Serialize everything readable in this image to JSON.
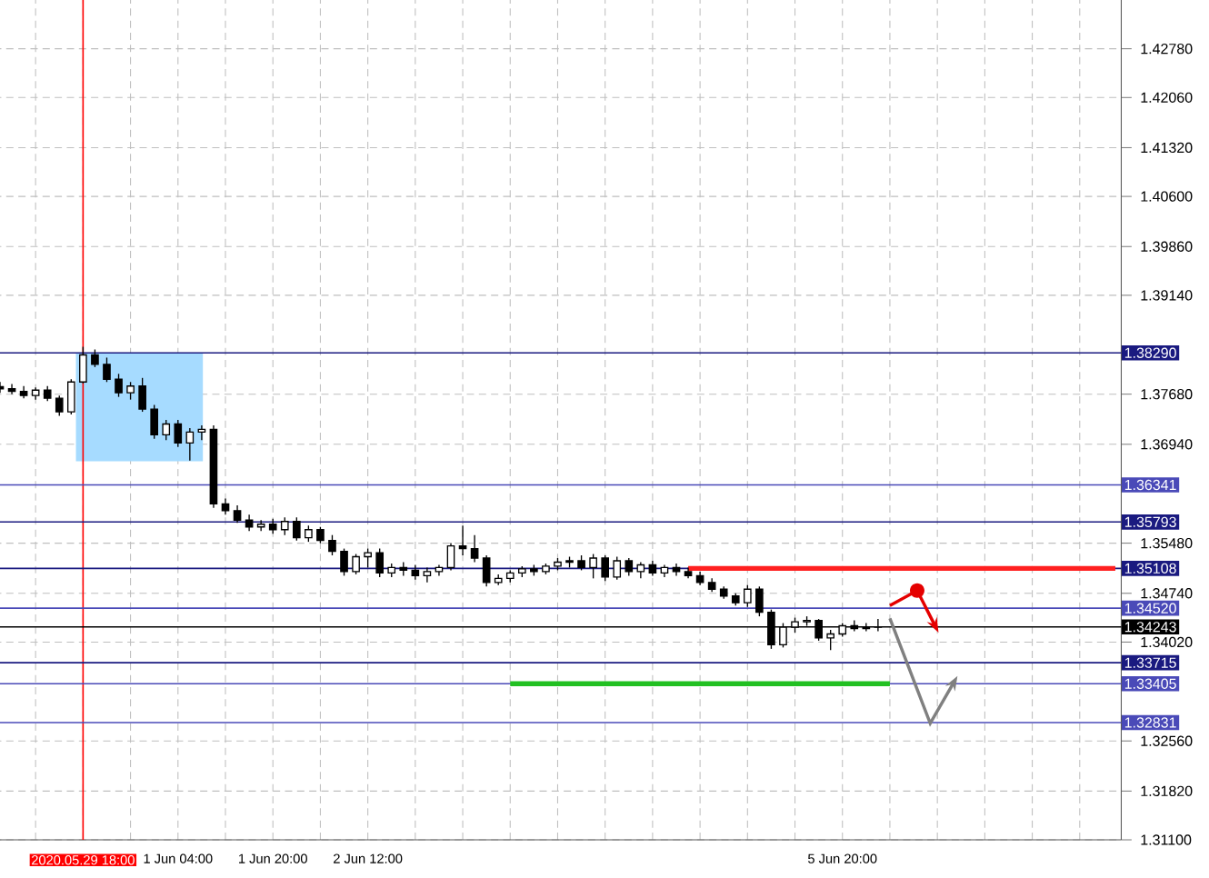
{
  "chart_data": {
    "type": "candlestick",
    "color": "#000000",
    "categories": [
      null,
      null,
      null,
      null,
      null,
      null,
      null,
      "2020.05.29 18:00",
      null,
      null,
      null,
      null,
      null,
      null,
      null,
      "1 Jun 04:00",
      null,
      null,
      null,
      null,
      null,
      null,
      null,
      "1 Jun 20:00",
      null,
      null,
      null,
      null,
      null,
      null,
      null,
      "2 Jun 12:00",
      null,
      null,
      null,
      null,
      null,
      null,
      null,
      null,
      null,
      null,
      null,
      null,
      null,
      null,
      null,
      null,
      null,
      null,
      null,
      null,
      null,
      null,
      null,
      null,
      null,
      null,
      null,
      null,
      null,
      null,
      null,
      null,
      null,
      null,
      null,
      null,
      null,
      null,
      null,
      "5 Jun 20:00",
      null,
      null,
      null,
      null,
      null,
      null,
      null,
      null,
      null,
      null,
      null,
      null,
      null,
      null,
      null,
      null,
      null,
      null,
      null,
      null,
      null,
      null,
      null
    ],
    "ohlc": [
      [
        1.3779,
        1.3786,
        1.377,
        1.3776
      ],
      [
        1.3776,
        1.3783,
        1.3768,
        1.3772
      ],
      [
        1.3772,
        1.378,
        1.3762,
        1.3766
      ],
      [
        1.3766,
        1.3778,
        1.376,
        1.3774
      ],
      [
        1.3774,
        1.378,
        1.3758,
        1.3762
      ],
      [
        1.3762,
        1.3766,
        1.3736,
        1.3742
      ],
      [
        1.3742,
        1.379,
        1.3738,
        1.3786
      ],
      [
        1.3786,
        1.3838,
        1.3784,
        1.3826
      ],
      [
        1.3826,
        1.3834,
        1.3808,
        1.3812
      ],
      [
        1.3812,
        1.3822,
        1.3786,
        1.379
      ],
      [
        1.379,
        1.3798,
        1.3764,
        1.377
      ],
      [
        1.377,
        1.3786,
        1.376,
        1.378
      ],
      [
        1.378,
        1.3792,
        1.3742,
        1.3746
      ],
      [
        1.3746,
        1.3752,
        1.3702,
        1.3708
      ],
      [
        1.3708,
        1.373,
        1.37,
        1.3724
      ],
      [
        1.3724,
        1.373,
        1.369,
        1.3696
      ],
      [
        1.3696,
        1.3718,
        1.367,
        1.3712
      ],
      [
        1.3712,
        1.3722,
        1.37,
        1.3716
      ],
      [
        1.3716,
        1.3722,
        1.36,
        1.3606
      ],
      [
        1.3606,
        1.3614,
        1.359,
        1.3596
      ],
      [
        1.3596,
        1.3604,
        1.3578,
        1.3582
      ],
      [
        1.3582,
        1.359,
        1.3566,
        1.3572
      ],
      [
        1.3572,
        1.3582,
        1.3566,
        1.3576
      ],
      [
        1.3576,
        1.3584,
        1.3562,
        1.3568
      ],
      [
        1.3568,
        1.3586,
        1.356,
        1.358
      ],
      [
        1.358,
        1.3586,
        1.3552,
        1.3556
      ],
      [
        1.3556,
        1.3574,
        1.355,
        1.3568
      ],
      [
        1.3568,
        1.3572,
        1.3548,
        1.3552
      ],
      [
        1.3552,
        1.356,
        1.353,
        1.3536
      ],
      [
        1.3536,
        1.354,
        1.35,
        1.3506
      ],
      [
        1.3506,
        1.3532,
        1.3502,
        1.3528
      ],
      [
        1.3528,
        1.354,
        1.3512,
        1.3534
      ],
      [
        1.3534,
        1.354,
        1.3498,
        1.3504
      ],
      [
        1.3504,
        1.3518,
        1.3498,
        1.3512
      ],
      [
        1.3512,
        1.352,
        1.35,
        1.3508
      ],
      [
        1.3508,
        1.3516,
        1.3494,
        1.35
      ],
      [
        1.35,
        1.3512,
        1.349,
        1.3506
      ],
      [
        1.3506,
        1.3516,
        1.35,
        1.3512
      ],
      [
        1.3512,
        1.3548,
        1.3508,
        1.3544
      ],
      [
        1.3544,
        1.3574,
        1.353,
        1.354
      ],
      [
        1.354,
        1.356,
        1.352,
        1.3526
      ],
      [
        1.3526,
        1.353,
        1.3484,
        1.349
      ],
      [
        1.349,
        1.3502,
        1.3486,
        1.3496
      ],
      [
        1.3496,
        1.3508,
        1.349,
        1.3504
      ],
      [
        1.3504,
        1.3514,
        1.3498,
        1.351
      ],
      [
        1.351,
        1.3516,
        1.35,
        1.3506
      ],
      [
        1.3506,
        1.3518,
        1.3502,
        1.3514
      ],
      [
        1.3514,
        1.3526,
        1.3508,
        1.352
      ],
      [
        1.352,
        1.3528,
        1.3512,
        1.3522
      ],
      [
        1.3522,
        1.353,
        1.3508,
        1.3512
      ],
      [
        1.3512,
        1.3532,
        1.3496,
        1.3526
      ],
      [
        1.3526,
        1.353,
        1.3492,
        1.3498
      ],
      [
        1.3498,
        1.3528,
        1.3494,
        1.3522
      ],
      [
        1.3522,
        1.3526,
        1.35,
        1.3506
      ],
      [
        1.3506,
        1.352,
        1.3496,
        1.3516
      ],
      [
        1.3516,
        1.3522,
        1.35,
        1.3504
      ],
      [
        1.3504,
        1.3516,
        1.3498,
        1.3512
      ],
      [
        1.3512,
        1.3518,
        1.35,
        1.3506
      ],
      [
        1.3506,
        1.3512,
        1.3496,
        1.35
      ],
      [
        1.35,
        1.3506,
        1.3486,
        1.349
      ],
      [
        1.349,
        1.3496,
        1.3476,
        1.348
      ],
      [
        1.348,
        1.3484,
        1.3466,
        1.347
      ],
      [
        1.347,
        1.3474,
        1.3456,
        1.346
      ],
      [
        1.346,
        1.3486,
        1.3454,
        1.348
      ],
      [
        1.348,
        1.3484,
        1.344,
        1.3446
      ],
      [
        1.3446,
        1.345,
        1.3392,
        1.3398
      ],
      [
        1.3398,
        1.343,
        1.3394,
        1.3424
      ],
      [
        1.3424,
        1.3438,
        1.3416,
        1.3432
      ],
      [
        1.3432,
        1.344,
        1.3426,
        1.3434
      ],
      [
        1.3434,
        1.3436,
        1.3404,
        1.3408
      ],
      [
        1.3408,
        1.342,
        1.339,
        1.3414
      ],
      [
        1.3414,
        1.343,
        1.341,
        1.3426
      ],
      [
        1.3426,
        1.3434,
        1.3418,
        1.3422
      ],
      [
        1.3422,
        1.343,
        1.3418,
        1.3424
      ],
      [
        1.3424,
        1.3436,
        1.3418,
        1.34243
      ],
      null,
      null,
      null,
      null,
      null,
      null,
      null,
      null,
      null,
      null,
      null,
      null,
      null,
      null,
      null,
      null,
      null,
      null,
      null,
      null
    ],
    "series": [
      {
        "type": "line",
        "color": "#ff2020",
        "values": [
          null,
          null,
          null,
          null,
          null,
          null,
          null,
          null,
          null,
          null,
          null,
          null,
          null,
          null,
          null,
          null,
          null,
          null,
          null,
          null,
          null,
          null,
          null,
          null,
          null,
          null,
          null,
          null,
          null,
          null,
          null,
          null,
          null,
          null,
          null,
          null,
          null,
          null,
          null,
          null,
          null,
          null,
          null,
          null,
          null,
          null,
          null,
          null,
          null,
          null,
          null,
          null,
          null,
          null,
          null,
          null,
          null,
          null,
          1.35108,
          1.35108,
          1.35108,
          1.35108,
          1.35108,
          1.35108,
          1.35108,
          1.35108,
          1.35108,
          1.35108,
          1.35108,
          1.35108,
          1.35108,
          1.35108,
          1.35108,
          1.35108,
          1.35108,
          1.35108,
          1.35108,
          1.35108,
          1.35108,
          1.35108,
          1.35108,
          1.35108,
          1.35108,
          1.35108,
          1.35108,
          1.35108,
          1.35108,
          1.35108,
          1.35108,
          1.35108,
          1.35108,
          1.35108,
          1.35108,
          1.35108,
          1.35108
        ]
      },
      {
        "type": "line",
        "color": "#22c022",
        "values": [
          null,
          null,
          null,
          null,
          null,
          null,
          null,
          null,
          null,
          null,
          null,
          null,
          null,
          null,
          null,
          null,
          null,
          null,
          null,
          null,
          null,
          null,
          null,
          null,
          null,
          null,
          null,
          null,
          null,
          null,
          null,
          null,
          null,
          null,
          null,
          null,
          null,
          null,
          null,
          null,
          null,
          null,
          null,
          1.33405,
          1.33405,
          1.33405,
          1.33405,
          1.33405,
          1.33405,
          1.33405,
          1.33405,
          1.33405,
          1.33405,
          1.33405,
          1.33405,
          1.33405,
          1.33405,
          1.33405,
          1.33405,
          1.33405,
          1.33405,
          1.33405,
          1.33405,
          1.33405,
          1.33405,
          1.33405,
          1.33405,
          1.33405,
          1.33405,
          1.33405,
          1.33405,
          1.33405,
          1.33405,
          1.33405,
          1.33405,
          1.33405,
          null,
          null,
          null,
          null,
          null,
          null,
          null,
          null,
          null,
          null,
          null,
          null,
          null,
          null,
          null,
          null,
          null,
          null,
          null
        ]
      }
    ],
    "ylim": [
      1.311,
      1.435
    ],
    "yticks": [
      {
        "value": 1.311,
        "label": "1.31100"
      },
      {
        "value": 1.3182,
        "label": "1.31820"
      },
      {
        "value": 1.3256,
        "label": "1.32560"
      },
      {
        "value": 1.3402,
        "label": "1.34020"
      },
      {
        "value": 1.3474,
        "label": "1.34740"
      },
      {
        "value": 1.3548,
        "label": "1.35480"
      },
      {
        "value": 1.3694,
        "label": "1.36940"
      },
      {
        "value": 1.3768,
        "label": "1.37680"
      },
      {
        "value": 1.3914,
        "label": "1.39140"
      },
      {
        "value": 1.3986,
        "label": "1.39860"
      },
      {
        "value": 1.406,
        "label": "1.40600"
      },
      {
        "value": 1.4132,
        "label": "1.41320"
      },
      {
        "value": 1.4206,
        "label": "1.42060"
      },
      {
        "value": 1.4278,
        "label": "1.42780"
      }
    ],
    "ref_lines": [
      {
        "axis": "x",
        "value": "2020.05.29 18:00",
        "color": "#ff0000"
      },
      {
        "axis": "y",
        "value": 1.3829,
        "label": "1.38290",
        "color": "#1a1a80"
      },
      {
        "axis": "y",
        "value": 1.36341,
        "label": "1.36341",
        "color": "#4a4ab8"
      },
      {
        "axis": "y",
        "value": 1.35793,
        "label": "1.35793",
        "color": "#1a1a80"
      },
      {
        "axis": "y",
        "value": 1.35108,
        "label": "1.35108",
        "color": "#1a1a80"
      },
      {
        "axis": "y",
        "value": 1.3452,
        "label": "1.34520",
        "color": "#4a4ab8"
      },
      {
        "axis": "y",
        "value": 1.34243,
        "label": "1.34243",
        "color": "#000000"
      },
      {
        "axis": "y",
        "value": 1.33715,
        "label": "1.33715",
        "color": "#1a1a80"
      },
      {
        "axis": "y",
        "value": 1.33405,
        "label": "1.33405",
        "color": "#4a4ab8"
      },
      {
        "axis": "y",
        "value": 1.32831,
        "label": "1.32831",
        "color": "#4a4ab8"
      }
    ],
    "grid": true
  }
}
